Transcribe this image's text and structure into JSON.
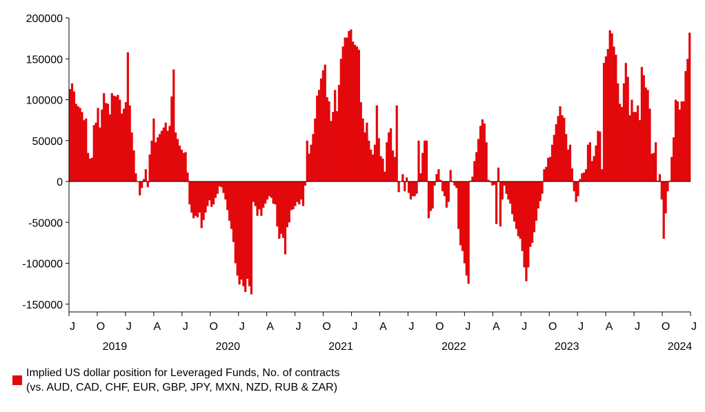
{
  "chart_data": {
    "type": "bar",
    "title": "",
    "xlabel": "",
    "ylabel": "",
    "ylim": [
      -160000,
      200000
    ],
    "y_ticks": [
      "200000",
      "150000",
      "100000",
      "50000",
      "0",
      "-50000",
      "-100000",
      "-150000"
    ],
    "x_month_ticks": [
      "J",
      "O",
      "J",
      "A",
      "J",
      "O",
      "J",
      "A",
      "J",
      "O",
      "J",
      "A",
      "J",
      "O",
      "J",
      "A",
      "J",
      "O",
      "J",
      "A",
      "J",
      "O",
      "J"
    ],
    "x_year_labels": [
      "2019",
      "2020",
      "2021",
      "2022",
      "2023",
      "2024"
    ],
    "bar_color": "#e2080c",
    "series": [
      {
        "name": "Implied US dollar position for Leveraged Funds, No. of contracts",
        "start": "2019-06-01",
        "end": "2024-06-30",
        "values": [
          113000,
          120000,
          110000,
          95000,
          92000,
          90000,
          85000,
          75000,
          77000,
          35000,
          28000,
          29000,
          69000,
          72000,
          90000,
          66000,
          88000,
          108000,
          96000,
          95000,
          82000,
          108000,
          105000,
          104000,
          106000,
          100000,
          83000,
          89000,
          97000,
          158000,
          93000,
          60000,
          38000,
          10000,
          0,
          -17000,
          -8000,
          3000,
          15000,
          -7000,
          33000,
          50000,
          77000,
          48000,
          54000,
          58000,
          62000,
          66000,
          72000,
          62000,
          68000,
          104000,
          137000,
          60000,
          52000,
          44000,
          39000,
          35000,
          36000,
          11000,
          -28000,
          -38000,
          -45000,
          -42000,
          -44000,
          -38000,
          -57000,
          -47000,
          -38000,
          -30000,
          -23000,
          -31000,
          -28000,
          -20000,
          -15000,
          -6000,
          -7000,
          -14000,
          -22000,
          -35000,
          -48000,
          -58000,
          -74000,
          -100000,
          -115000,
          -126000,
          -120000,
          -128000,
          -135000,
          -119000,
          -128000,
          -138000,
          -25000,
          -30000,
          -42000,
          -34000,
          -42000,
          -32000,
          -27000,
          -22000,
          -18000,
          -20000,
          -27000,
          -28000,
          -55000,
          -70000,
          -64000,
          -69000,
          -89000,
          -56000,
          -50000,
          -35000,
          -34000,
          -30000,
          -25000,
          -28000,
          -22000,
          -30000,
          -5000,
          50000,
          34000,
          45000,
          58000,
          77000,
          105000,
          112000,
          126000,
          136000,
          143000,
          103000,
          98000,
          74000,
          85000,
          112000,
          86000,
          118000,
          150000,
          165000,
          176000,
          176000,
          184000,
          186000,
          171000,
          167000,
          165000,
          161000,
          97000,
          77000,
          60000,
          72000,
          50000,
          39000,
          33000,
          45000,
          93000,
          53000,
          31000,
          28000,
          12000,
          48000,
          60000,
          65000,
          38000,
          30000,
          93000,
          -13000,
          0,
          9000,
          -12000,
          5000,
          -14000,
          -22000,
          -18000,
          -18000,
          -15000,
          50000,
          10000,
          35000,
          50000,
          50000,
          -45000,
          -36000,
          -33000,
          -5000,
          9000,
          15000,
          2000,
          -12000,
          -18000,
          -32000,
          -25000,
          14000,
          -1000,
          -5000,
          -8000,
          -58000,
          -78000,
          -85000,
          -100000,
          -115000,
          -125000,
          1000,
          6000,
          25000,
          36000,
          52000,
          68000,
          76000,
          71000,
          48000,
          2000,
          -1000,
          -5000,
          -4000,
          -52000,
          17000,
          -55000,
          -22000,
          -5000,
          -15000,
          -22000,
          -27000,
          -40000,
          -49000,
          -58000,
          -67000,
          -70000,
          -85000,
          -105000,
          -122000,
          -105000,
          -80000,
          -75000,
          -62000,
          -48000,
          -33000,
          -24000,
          -15000,
          15000,
          18000,
          29000,
          30000,
          45000,
          57000,
          70000,
          80000,
          92000,
          81000,
          78000,
          58000,
          39000,
          45000,
          16000,
          -12000,
          -25000,
          -18000,
          3000,
          10000,
          11000,
          15000,
          45000,
          48000,
          25000,
          31000,
          44000,
          62000,
          61000,
          15000,
          145000,
          153000,
          162000,
          185000,
          181000,
          165000,
          155000,
          120000,
          95000,
          91000,
          120000,
          145000,
          128000,
          81000,
          100000,
          85000,
          85000,
          93000,
          75000,
          140000,
          130000,
          115000,
          112000,
          89000,
          34000,
          35000,
          48000,
          1000,
          9000,
          -22000,
          -70000,
          -39000,
          -12000,
          1000,
          30000,
          54000,
          100000,
          98000,
          88000,
          98000,
          98000,
          135000,
          150000,
          182000
        ]
      }
    ],
    "legend": {
      "swatch_color": "#e2080c",
      "line1": "Implied US dollar position for Leveraged Funds, No. of contracts",
      "line2": "(vs. AUD, CAD, CHF, EUR, GBP, JPY, MXN, NZD, RUB & ZAR)",
      "placement": "bottom-left"
    }
  }
}
